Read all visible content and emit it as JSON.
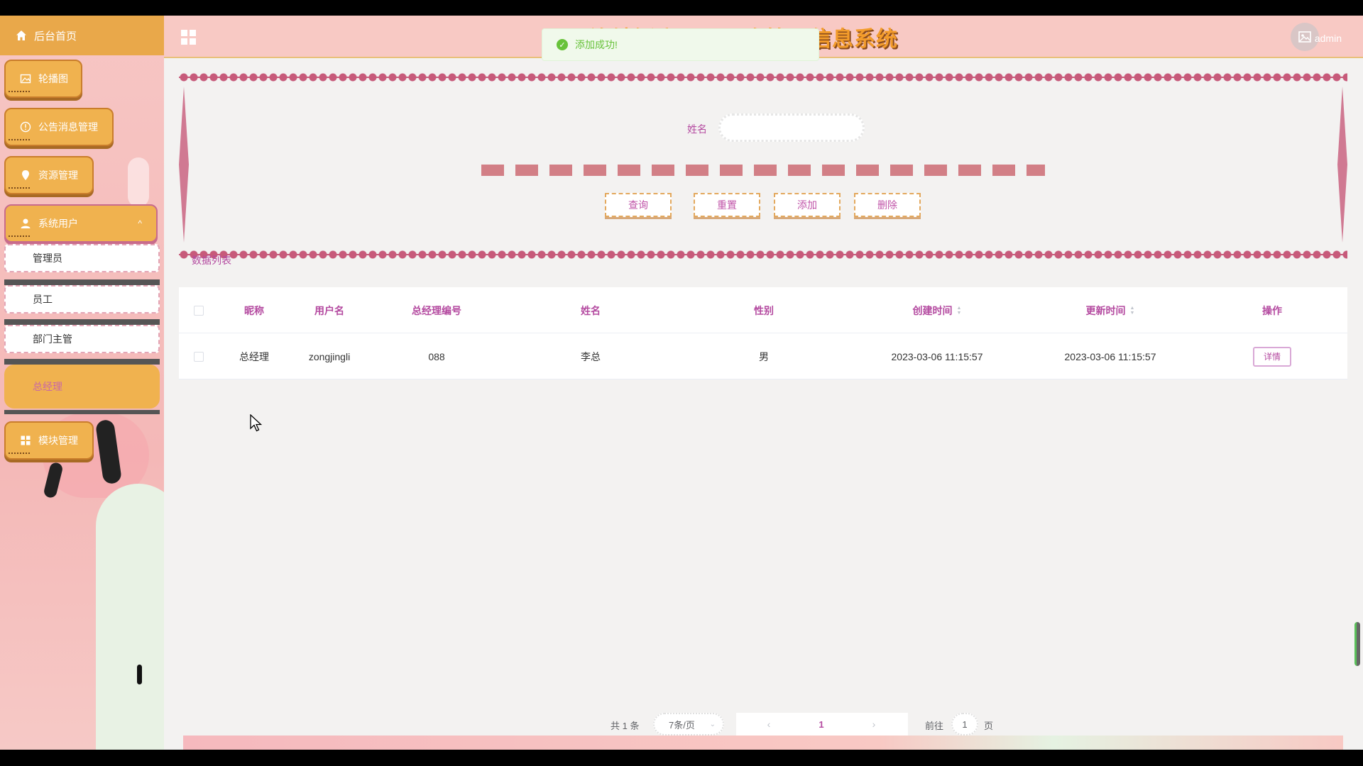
{
  "sidebar": {
    "home": "后台首页",
    "items": [
      {
        "label": "轮播图"
      },
      {
        "label": "公告消息管理"
      },
      {
        "label": "资源管理"
      },
      {
        "label": "系统用户"
      },
      {
        "label": "模块管理"
      }
    ],
    "sub_items": [
      {
        "label": "管理员"
      },
      {
        "label": "员工"
      },
      {
        "label": "部门主管"
      },
      {
        "label": "总经理"
      }
    ]
  },
  "header": {
    "title": "连锁饭店员工工资管理信息系统",
    "username": "admin"
  },
  "toast": {
    "message": "添加成功!"
  },
  "search": {
    "name_label": "姓名",
    "name_value": "",
    "buttons": {
      "query": "查询",
      "reset": "重置",
      "add": "添加",
      "delete": "删除"
    }
  },
  "list": {
    "title": "数据列表",
    "columns": [
      "昵称",
      "用户名",
      "总经理编号",
      "姓名",
      "性别",
      "创建时间",
      "更新时间",
      "操作"
    ],
    "rows": [
      {
        "nickname": "总经理",
        "username": "zongjingli",
        "manager_no": "088",
        "name": "李总",
        "gender": "男",
        "created": "2023-03-06 11:15:57",
        "updated": "2023-03-06 11:15:57",
        "action": "详情"
      }
    ]
  },
  "pagination": {
    "total": "共 1 条",
    "page_size": "7条/页",
    "current_page": "1",
    "goto_prefix": "前往",
    "goto_value": "1",
    "goto_suffix": "页"
  },
  "colors": {
    "accent_orange": "#f0b24f",
    "accent_purple": "#b44aa0",
    "header_pink": "#f8c9c4",
    "border_rose": "#c75a7a",
    "success_green": "#67c23a"
  }
}
